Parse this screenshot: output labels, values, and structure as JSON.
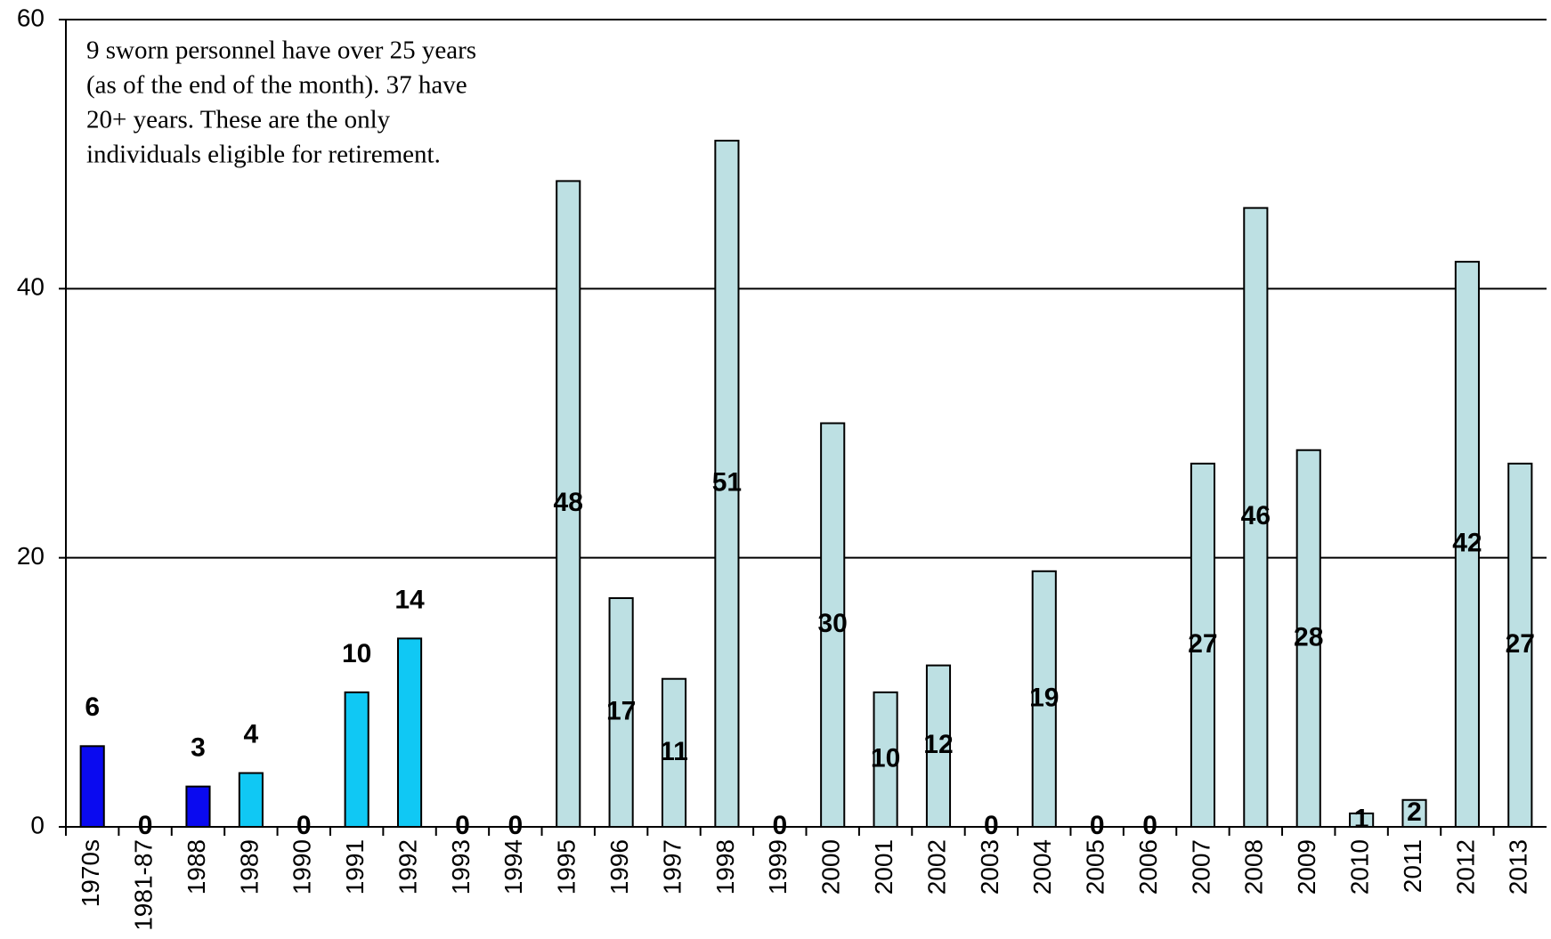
{
  "chart_data": {
    "type": "bar",
    "annotation": [
      "9 sworn personnel have over 25 years",
      "(as of the end of the month).  37 have",
      "20+ years.  These are the only",
      "individuals eligible for retirement."
    ],
    "categories": [
      "1970s",
      "1981-87",
      "1988",
      "1989",
      "1990",
      "1991",
      "1992",
      "1993",
      "1994",
      "1995",
      "1996",
      "1997",
      "1998",
      "1999",
      "2000",
      "2001",
      "2002",
      "2003",
      "2004",
      "2005",
      "2006",
      "2007",
      "2008",
      "2009",
      "2010",
      "2011",
      "2012",
      "2013"
    ],
    "values": [
      6,
      0,
      3,
      4,
      0,
      10,
      14,
      0,
      0,
      48,
      17,
      11,
      51,
      0,
      30,
      10,
      12,
      0,
      19,
      0,
      0,
      27,
      46,
      28,
      1,
      2,
      42,
      27
    ],
    "colors": [
      "#0a0af0",
      "#0a0af0",
      "#0a0af0",
      "#10c8f4",
      "#10c8f4",
      "#10c8f4",
      "#10c8f4",
      "#bde0e3",
      "#bde0e3",
      "#bde0e3",
      "#bde0e3",
      "#bde0e3",
      "#bde0e3",
      "#bde0e3",
      "#bde0e3",
      "#bde0e3",
      "#bde0e3",
      "#bde0e3",
      "#bde0e3",
      "#bde0e3",
      "#bde0e3",
      "#bde0e3",
      "#bde0e3",
      "#bde0e3",
      "#bde0e3",
      "#bde0e3",
      "#bde0e3",
      "#bde0e3"
    ],
    "ylim": [
      0,
      60
    ],
    "yticks": [
      0,
      20,
      40,
      60
    ],
    "grid": true
  }
}
